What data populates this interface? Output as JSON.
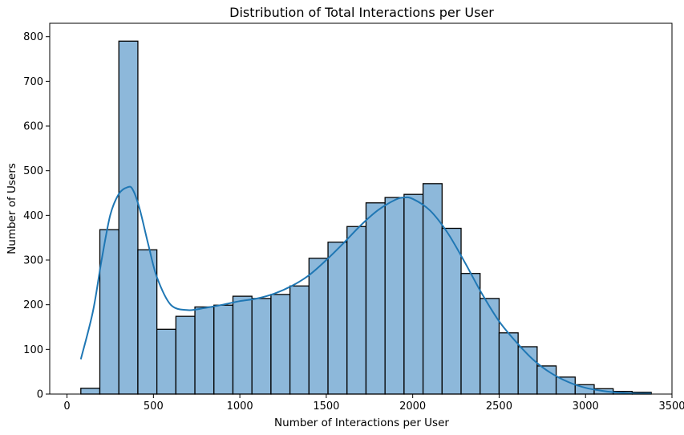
{
  "chart_data": {
    "type": "bar",
    "title": "Distribution of Total Interactions per User",
    "xlabel": "Number of Interactions per User",
    "ylabel": "Number of Users",
    "xlim": [
      -100,
      3500
    ],
    "ylim": [
      0,
      830
    ],
    "xticks": [
      0,
      500,
      1000,
      1500,
      2000,
      2500,
      3000,
      3500
    ],
    "yticks": [
      0,
      100,
      200,
      300,
      400,
      500,
      600,
      700,
      800
    ],
    "bin_edges": [
      80,
      190,
      300,
      410,
      520,
      630,
      740,
      850,
      960,
      1070,
      1180,
      1290,
      1400,
      1510,
      1620,
      1730,
      1840,
      1950,
      2060,
      2170,
      2280,
      2390,
      2500,
      2610,
      2720,
      2830,
      2940,
      3050,
      3160,
      3270,
      3380
    ],
    "counts": [
      13,
      368,
      790,
      323,
      145,
      174,
      195,
      199,
      219,
      214,
      223,
      242,
      304,
      340,
      375,
      428,
      440,
      447,
      471,
      371,
      270,
      214,
      137,
      106,
      63,
      38,
      21,
      12,
      6,
      4
    ],
    "kde": {
      "x": [
        80,
        150,
        200,
        250,
        300,
        350,
        380,
        420,
        470,
        520,
        600,
        700,
        800,
        900,
        1000,
        1100,
        1200,
        1300,
        1400,
        1500,
        1600,
        1700,
        1800,
        1900,
        1950,
        2000,
        2100,
        2200,
        2300,
        2400,
        2500,
        2600,
        2700,
        2800,
        2900,
        3000,
        3100,
        3200,
        3300,
        3380
      ],
      "y": [
        78,
        185,
        300,
        400,
        448,
        463,
        458,
        415,
        335,
        262,
        200,
        188,
        193,
        200,
        208,
        214,
        225,
        242,
        266,
        300,
        338,
        378,
        412,
        435,
        440,
        437,
        411,
        362,
        296,
        225,
        163,
        116,
        76,
        47,
        27,
        14,
        7,
        3,
        1,
        1
      ]
    },
    "grid": false,
    "legend": false,
    "colors": {
      "bar_fill": "#8db8da",
      "bar_edge": "#000000",
      "kde_line": "#1f77b4"
    }
  }
}
